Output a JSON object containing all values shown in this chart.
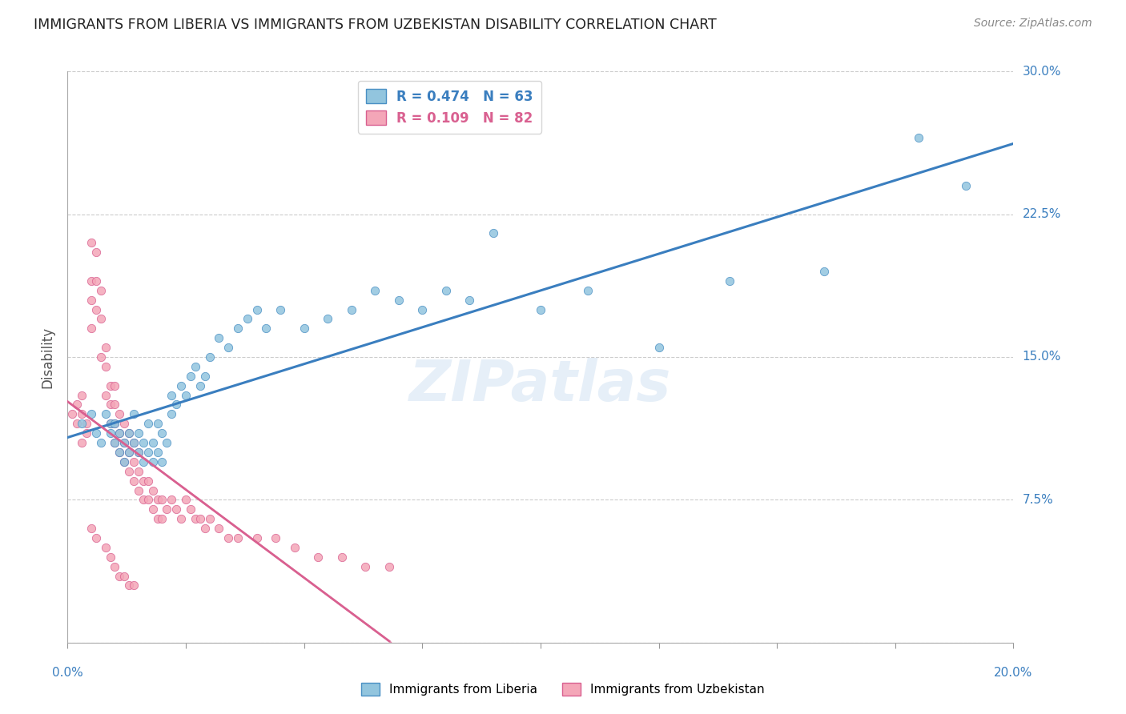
{
  "title": "IMMIGRANTS FROM LIBERIA VS IMMIGRANTS FROM UZBEKISTAN DISABILITY CORRELATION CHART",
  "source": "Source: ZipAtlas.com",
  "ylabel": "Disability",
  "xlim": [
    0.0,
    0.2
  ],
  "ylim": [
    0.0,
    0.3
  ],
  "yticks": [
    0.0,
    0.075,
    0.15,
    0.225,
    0.3
  ],
  "xticks": [
    0.0,
    0.025,
    0.05,
    0.075,
    0.1,
    0.125,
    0.15,
    0.175,
    0.2
  ],
  "legend1_R": "R = 0.474",
  "legend1_N": "N = 63",
  "legend2_R": "R = 0.109",
  "legend2_N": "N = 82",
  "color_blue": "#92c5de",
  "color_blue_edge": "#4a90c4",
  "color_blue_line": "#3a7ebf",
  "color_pink": "#f4a6b8",
  "color_pink_edge": "#d96090",
  "color_pink_line": "#d96090",
  "color_axis_label": "#3a7ebf",
  "background_color": "#ffffff",
  "blue_x": [
    0.003,
    0.005,
    0.006,
    0.007,
    0.008,
    0.009,
    0.009,
    0.01,
    0.01,
    0.011,
    0.011,
    0.012,
    0.012,
    0.013,
    0.013,
    0.014,
    0.014,
    0.015,
    0.015,
    0.016,
    0.016,
    0.017,
    0.017,
    0.018,
    0.018,
    0.019,
    0.019,
    0.02,
    0.02,
    0.021,
    0.022,
    0.022,
    0.023,
    0.024,
    0.025,
    0.026,
    0.027,
    0.028,
    0.029,
    0.03,
    0.032,
    0.034,
    0.036,
    0.038,
    0.04,
    0.042,
    0.045,
    0.05,
    0.055,
    0.06,
    0.065,
    0.07,
    0.075,
    0.08,
    0.085,
    0.09,
    0.1,
    0.11,
    0.125,
    0.14,
    0.16,
    0.18,
    0.19
  ],
  "blue_y": [
    0.115,
    0.12,
    0.11,
    0.105,
    0.12,
    0.11,
    0.115,
    0.105,
    0.115,
    0.1,
    0.11,
    0.095,
    0.105,
    0.1,
    0.11,
    0.105,
    0.12,
    0.1,
    0.11,
    0.095,
    0.105,
    0.1,
    0.115,
    0.095,
    0.105,
    0.1,
    0.115,
    0.095,
    0.11,
    0.105,
    0.12,
    0.13,
    0.125,
    0.135,
    0.13,
    0.14,
    0.145,
    0.135,
    0.14,
    0.15,
    0.16,
    0.155,
    0.165,
    0.17,
    0.175,
    0.165,
    0.175,
    0.165,
    0.17,
    0.175,
    0.185,
    0.18,
    0.175,
    0.185,
    0.18,
    0.215,
    0.175,
    0.185,
    0.155,
    0.19,
    0.195,
    0.265,
    0.24
  ],
  "pink_x": [
    0.001,
    0.002,
    0.002,
    0.003,
    0.003,
    0.003,
    0.004,
    0.004,
    0.005,
    0.005,
    0.005,
    0.005,
    0.006,
    0.006,
    0.006,
    0.007,
    0.007,
    0.007,
    0.008,
    0.008,
    0.008,
    0.009,
    0.009,
    0.009,
    0.01,
    0.01,
    0.01,
    0.01,
    0.011,
    0.011,
    0.011,
    0.012,
    0.012,
    0.012,
    0.013,
    0.013,
    0.013,
    0.014,
    0.014,
    0.014,
    0.015,
    0.015,
    0.015,
    0.016,
    0.016,
    0.017,
    0.017,
    0.018,
    0.018,
    0.019,
    0.019,
    0.02,
    0.02,
    0.021,
    0.022,
    0.023,
    0.024,
    0.025,
    0.026,
    0.027,
    0.028,
    0.029,
    0.03,
    0.032,
    0.034,
    0.036,
    0.04,
    0.044,
    0.048,
    0.053,
    0.058,
    0.063,
    0.068,
    0.005,
    0.006,
    0.008,
    0.009,
    0.01,
    0.011,
    0.012,
    0.013,
    0.014
  ],
  "pink_y": [
    0.12,
    0.115,
    0.125,
    0.12,
    0.105,
    0.13,
    0.115,
    0.11,
    0.165,
    0.18,
    0.19,
    0.21,
    0.175,
    0.19,
    0.205,
    0.15,
    0.17,
    0.185,
    0.13,
    0.145,
    0.155,
    0.115,
    0.125,
    0.135,
    0.105,
    0.115,
    0.125,
    0.135,
    0.1,
    0.11,
    0.12,
    0.095,
    0.105,
    0.115,
    0.09,
    0.1,
    0.11,
    0.085,
    0.095,
    0.105,
    0.08,
    0.09,
    0.1,
    0.075,
    0.085,
    0.075,
    0.085,
    0.07,
    0.08,
    0.065,
    0.075,
    0.065,
    0.075,
    0.07,
    0.075,
    0.07,
    0.065,
    0.075,
    0.07,
    0.065,
    0.065,
    0.06,
    0.065,
    0.06,
    0.055,
    0.055,
    0.055,
    0.055,
    0.05,
    0.045,
    0.045,
    0.04,
    0.04,
    0.06,
    0.055,
    0.05,
    0.045,
    0.04,
    0.035,
    0.035,
    0.03,
    0.03
  ]
}
